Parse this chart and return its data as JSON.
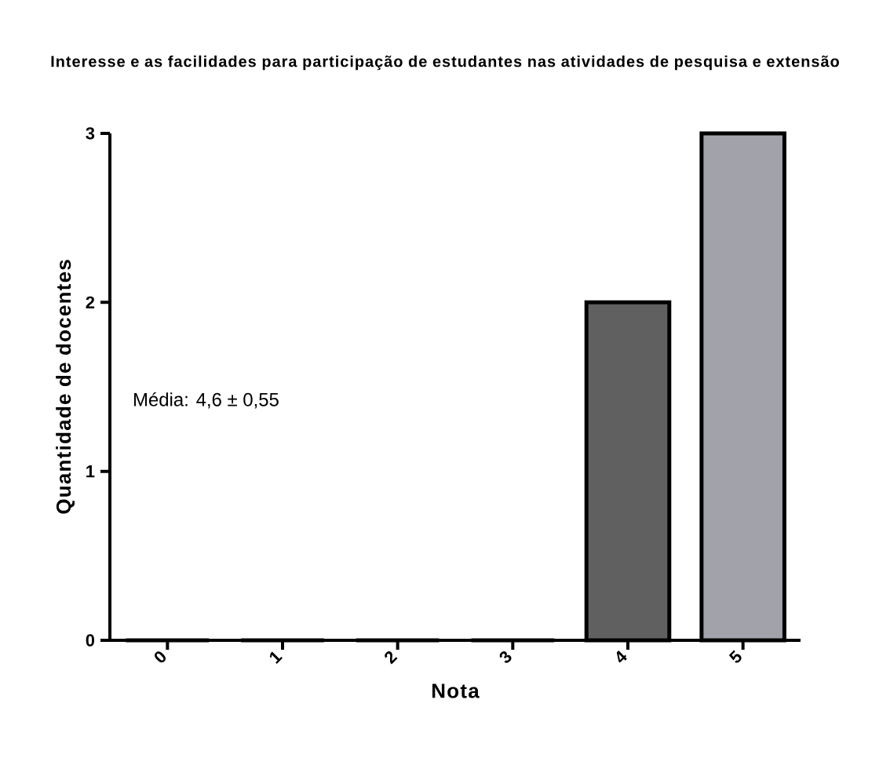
{
  "chart_data": {
    "type": "bar",
    "title": "Interesse e as facilidades para participação de estudantes nas atividades de pesquisa e extensão",
    "xlabel": "Nota",
    "ylabel": "Quantidade de docentes",
    "categories": [
      "0",
      "1",
      "2",
      "3",
      "4",
      "5"
    ],
    "values": [
      0,
      0,
      0,
      0,
      2,
      3
    ],
    "colors": [
      "#606060",
      "#606060",
      "#606060",
      "#606060",
      "#606060",
      "#a2a2aa"
    ],
    "ylim": [
      0,
      3
    ],
    "yticks": [
      0,
      1,
      2,
      3
    ],
    "annotations": [
      "Média: 4,6 ± 0,55"
    ]
  }
}
